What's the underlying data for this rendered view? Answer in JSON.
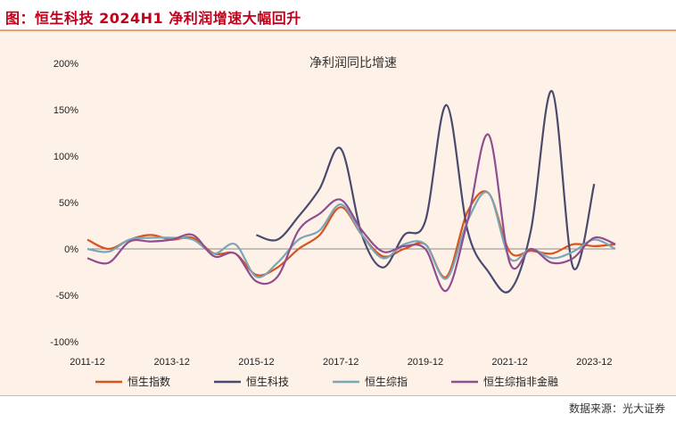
{
  "header": {
    "title": "图：恒生科技 2024H1 净利润增速大幅回升"
  },
  "source": "数据来源：光大证券",
  "colors": {
    "series": [
      "#d9531e",
      "#4a4a6e",
      "#7aa6b5",
      "#8f4e8f"
    ],
    "title": "#c0001a"
  },
  "chart_data": {
    "type": "line",
    "title": "净利润同比增速",
    "xlabel": "",
    "ylabel": "",
    "ylim": [
      -100,
      200
    ],
    "yticks": [
      "200%",
      "150%",
      "100%",
      "50%",
      "0%",
      "-50%",
      "-100%"
    ],
    "xticks": [
      "2011-12",
      "2013-12",
      "2015-12",
      "2017-12",
      "2019-12",
      "2021-12",
      "2023-12"
    ],
    "grid": false,
    "legend": "bottom",
    "series": [
      {
        "name": "恒生指数",
        "x": [
          2011.917,
          2012.417,
          2012.917,
          2013.417,
          2013.917,
          2014.417,
          2014.917,
          2015.417,
          2015.917,
          2016.417,
          2016.917,
          2017.417,
          2017.917,
          2018.417,
          2018.917,
          2019.417,
          2019.917,
          2020.417,
          2020.917,
          2021.417,
          2021.917,
          2022.417,
          2022.917,
          2023.417,
          2023.917,
          2024.417
        ],
        "values": [
          10,
          0,
          10,
          15,
          10,
          12,
          -5,
          -5,
          -28,
          -20,
          0,
          15,
          45,
          15,
          -8,
          0,
          5,
          -30,
          40,
          60,
          -3,
          -2,
          -5,
          5,
          3,
          5
        ]
      },
      {
        "name": "恒生科技",
        "x": [
          2015.917,
          2016.417,
          2016.917,
          2017.417,
          2017.917,
          2018.417,
          2018.917,
          2019.417,
          2019.917,
          2020.417,
          2020.917,
          2021.417,
          2021.917,
          2022.417,
          2022.917,
          2023.417,
          2023.917,
          2024.417
        ],
        "values": [
          15,
          10,
          35,
          65,
          108,
          15,
          -20,
          15,
          30,
          155,
          20,
          -25,
          -45,
          20,
          170,
          -20,
          70,
          null
        ]
      },
      {
        "name": "恒生综指",
        "x": [
          2011.917,
          2012.417,
          2012.917,
          2013.417,
          2013.917,
          2014.417,
          2014.917,
          2015.417,
          2015.917,
          2016.417,
          2016.917,
          2017.417,
          2017.917,
          2018.417,
          2018.917,
          2019.417,
          2019.917,
          2020.417,
          2020.917,
          2021.417,
          2021.917,
          2022.417,
          2022.917,
          2023.417,
          2023.917,
          2024.417
        ],
        "values": [
          0,
          -3,
          10,
          12,
          12,
          10,
          -5,
          5,
          -30,
          -15,
          10,
          20,
          48,
          15,
          -10,
          5,
          5,
          -32,
          30,
          60,
          -10,
          0,
          -10,
          -3,
          10,
          0
        ]
      },
      {
        "name": "恒生综指非金融",
        "x": [
          2011.917,
          2012.417,
          2012.917,
          2013.417,
          2013.917,
          2014.417,
          2014.917,
          2015.417,
          2015.917,
          2016.417,
          2016.917,
          2017.417,
          2017.917,
          2018.417,
          2018.917,
          2019.417,
          2019.917,
          2020.417,
          2020.917,
          2021.417,
          2021.917,
          2022.417,
          2022.917,
          2023.417,
          2023.917,
          2024.417
        ],
        "values": [
          -10,
          -15,
          8,
          8,
          10,
          15,
          -8,
          -5,
          -35,
          -30,
          20,
          38,
          53,
          20,
          -3,
          3,
          0,
          -45,
          30,
          123,
          -15,
          0,
          -15,
          -10,
          12,
          5
        ]
      }
    ]
  }
}
